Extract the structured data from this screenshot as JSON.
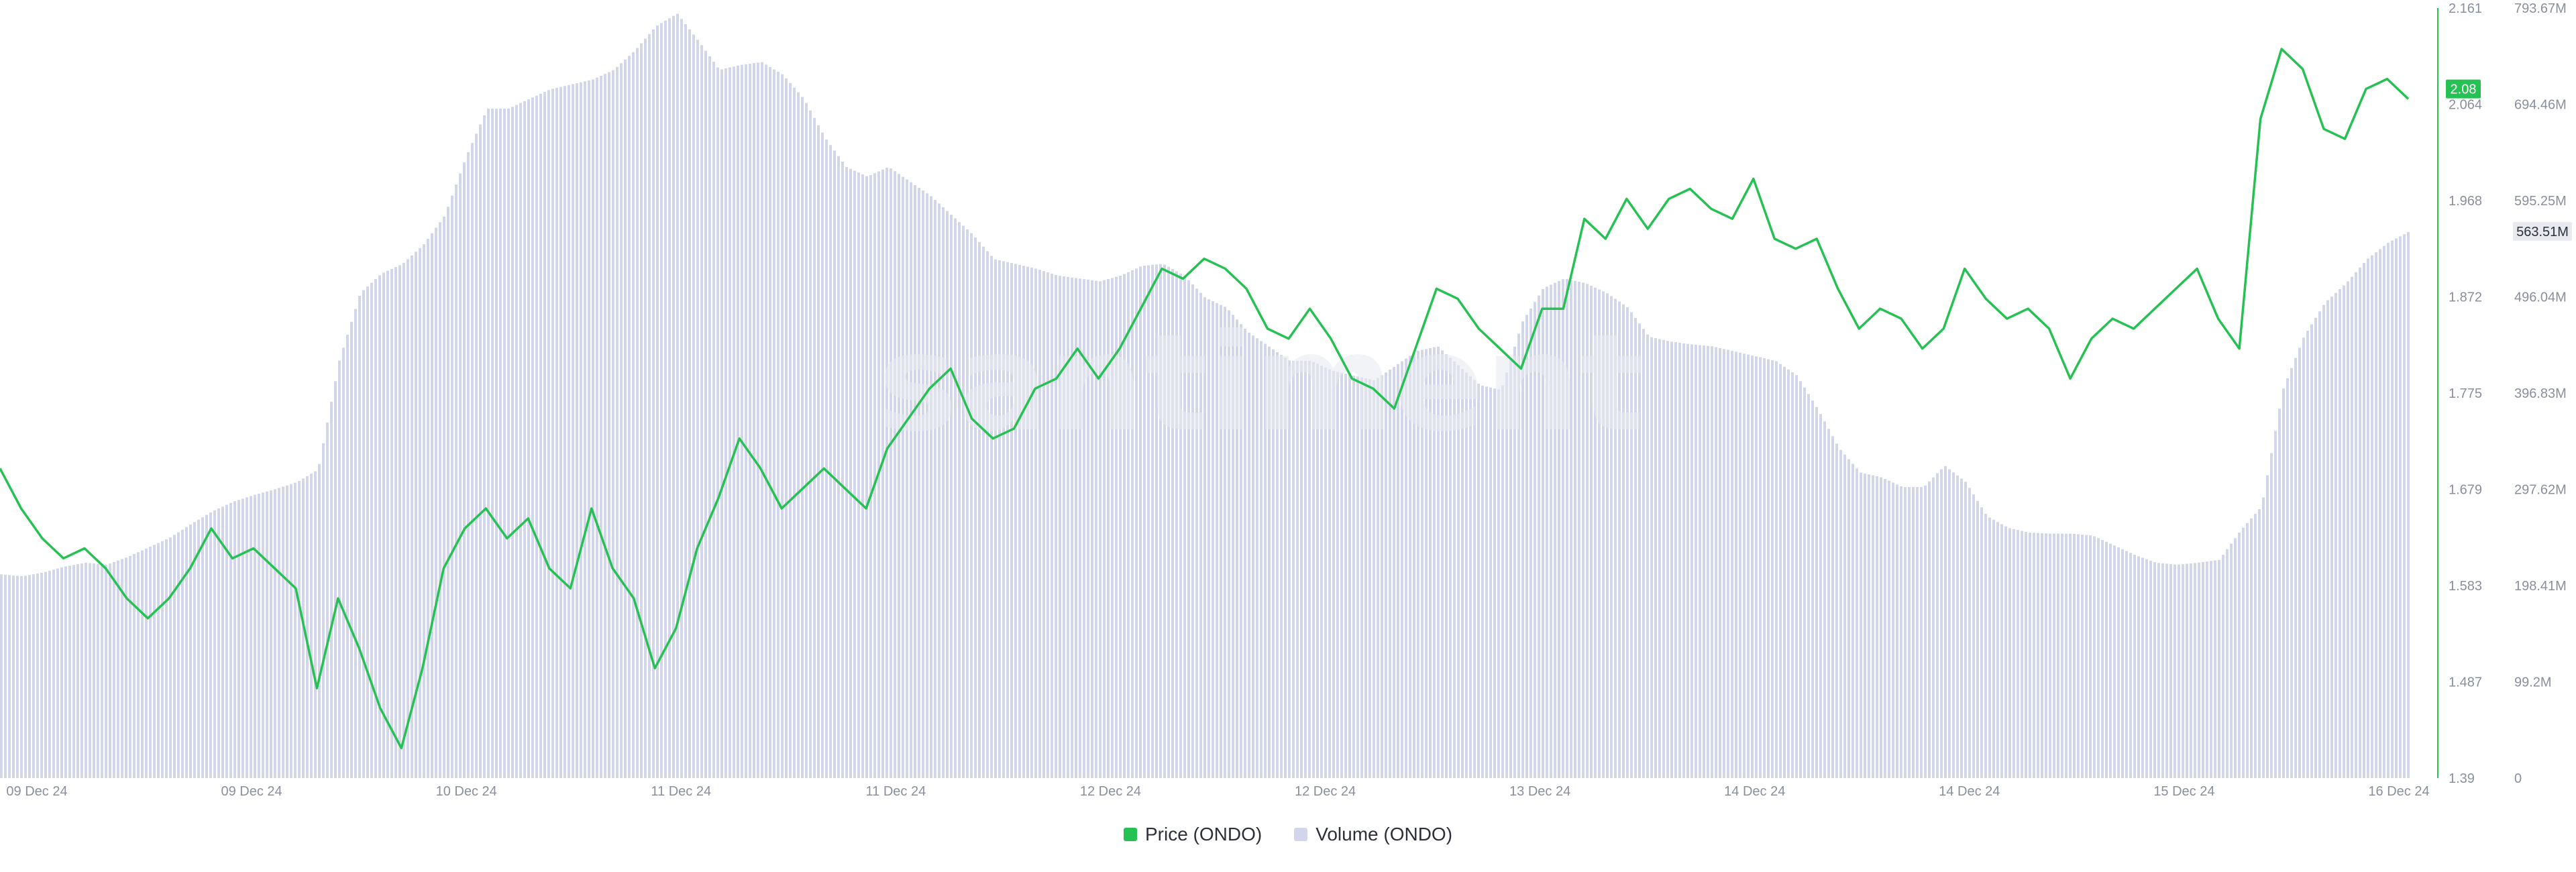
{
  "watermark": "santiment",
  "chart_data": {
    "type": "line",
    "x_labels": [
      "09 Dec 24",
      "09 Dec 24",
      "10 Dec 24",
      "11 Dec 24",
      "11 Dec 24",
      "12 Dec 24",
      "12 Dec 24",
      "13 Dec 24",
      "14 Dec 24",
      "14 Dec 24",
      "15 Dec 24",
      "16 Dec 24"
    ],
    "price_axis": {
      "ticks": [
        "2.161",
        "2.064",
        "1.968",
        "1.872",
        "1.775",
        "1.679",
        "1.583",
        "1.487",
        "1.39"
      ],
      "ylim": [
        1.39,
        2.161
      ],
      "current_value": "2.08"
    },
    "volume_axis": {
      "ticks": [
        "793.67M",
        "694.46M",
        "595.25M",
        "496.04M",
        "396.83M",
        "297.62M",
        "198.41M",
        "99.2M",
        "0"
      ],
      "ylim": [
        0,
        793.67
      ],
      "unit": "M",
      "current_value": "563.51M"
    },
    "series": [
      {
        "name": "Price (ONDO)",
        "axis": "price",
        "color": "#26c153",
        "values": [
          1.7,
          1.66,
          1.63,
          1.61,
          1.62,
          1.6,
          1.57,
          1.55,
          1.57,
          1.6,
          1.64,
          1.61,
          1.62,
          1.6,
          1.58,
          1.48,
          1.57,
          1.52,
          1.46,
          1.42,
          1.5,
          1.6,
          1.64,
          1.66,
          1.63,
          1.65,
          1.6,
          1.58,
          1.66,
          1.6,
          1.57,
          1.5,
          1.54,
          1.62,
          1.67,
          1.73,
          1.7,
          1.66,
          1.68,
          1.7,
          1.68,
          1.66,
          1.72,
          1.75,
          1.78,
          1.8,
          1.75,
          1.73,
          1.74,
          1.78,
          1.79,
          1.82,
          1.79,
          1.82,
          1.86,
          1.9,
          1.89,
          1.91,
          1.9,
          1.88,
          1.84,
          1.83,
          1.86,
          1.83,
          1.79,
          1.78,
          1.76,
          1.82,
          1.88,
          1.87,
          1.84,
          1.82,
          1.8,
          1.86,
          1.86,
          1.95,
          1.93,
          1.97,
          1.94,
          1.97,
          1.98,
          1.96,
          1.95,
          1.99,
          1.93,
          1.92,
          1.93,
          1.88,
          1.84,
          1.86,
          1.85,
          1.82,
          1.84,
          1.9,
          1.87,
          1.85,
          1.86,
          1.84,
          1.79,
          1.83,
          1.85,
          1.84,
          1.86,
          1.88,
          1.9,
          1.85,
          1.82,
          2.05,
          2.12,
          2.1,
          2.04,
          2.03,
          2.08,
          2.09,
          2.07
        ]
      },
      {
        "name": "Volume (ONDO)",
        "axis": "volume",
        "color": "#d3d6e8",
        "values": [
          210,
          208,
          212,
          218,
          222,
          220,
          228,
          238,
          248,
          262,
          275,
          285,
          292,
          298,
          305,
          318,
          430,
          500,
          520,
          530,
          550,
          580,
          640,
          690,
          690,
          700,
          710,
          715,
          720,
          730,
          750,
          775,
          788,
          760,
          730,
          735,
          738,
          725,
          700,
          660,
          630,
          620,
          630,
          615,
          600,
          580,
          560,
          535,
          530,
          525,
          518,
          515,
          512,
          518,
          528,
          530,
          518,
          495,
          485,
          460,
          445,
          430,
          430,
          420,
          415,
          410,
          425,
          440,
          445,
          425,
          405,
          400,
          470,
          505,
          515,
          510,
          500,
          485,
          455,
          450,
          447,
          445,
          440,
          435,
          430,
          415,
          380,
          340,
          315,
          310,
          300,
          300,
          322,
          305,
          270,
          258,
          253,
          252,
          252,
          250,
          240,
          230,
          222,
          220,
          222,
          225,
          255,
          280,
          400,
          455,
          490,
          510,
          535,
          552,
          563.51
        ]
      }
    ],
    "grid": false,
    "legend_position": "bottom-center"
  }
}
